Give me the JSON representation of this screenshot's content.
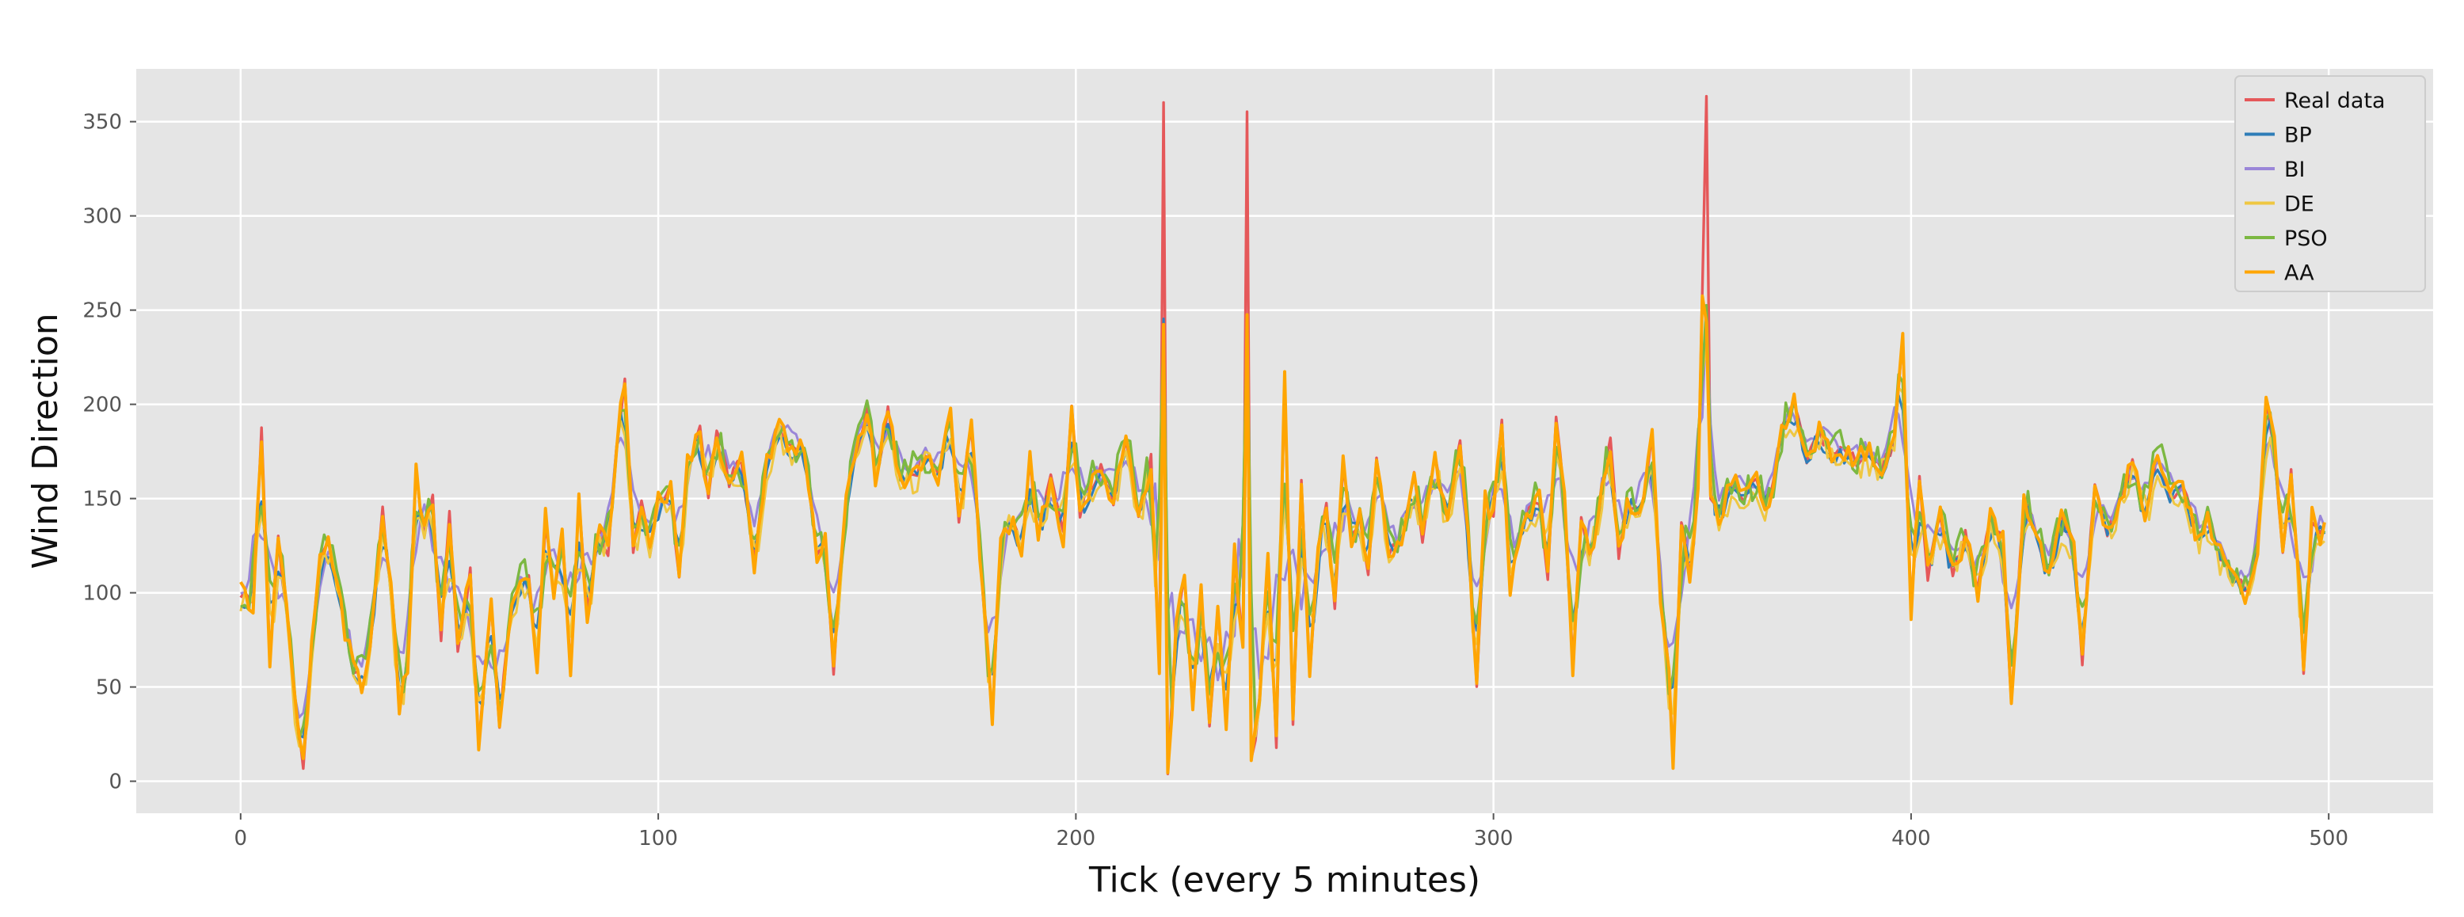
{
  "chart_data": {
    "type": "line",
    "title": "",
    "xlabel": "Tick (every 5 minutes)",
    "ylabel": "Wind Direction",
    "xlim": [
      -25,
      525
    ],
    "ylim": [
      -17,
      378
    ],
    "xticks": [
      0,
      100,
      200,
      300,
      400,
      500
    ],
    "yticks": [
      0,
      50,
      100,
      150,
      200,
      250,
      300,
      350
    ],
    "grid": true,
    "legend_position": "top-right",
    "n_points": 500,
    "x_step": 1,
    "keypoints": [
      [
        0,
        100
      ],
      [
        3,
        95
      ],
      [
        5,
        185
      ],
      [
        7,
        65
      ],
      [
        9,
        130
      ],
      [
        11,
        90
      ],
      [
        13,
        40
      ],
      [
        15,
        8
      ],
      [
        17,
        70
      ],
      [
        19,
        115
      ],
      [
        21,
        125
      ],
      [
        23,
        110
      ],
      [
        25,
        80
      ],
      [
        27,
        60
      ],
      [
        29,
        50
      ],
      [
        31,
        70
      ],
      [
        34,
        145
      ],
      [
        36,
        100
      ],
      [
        38,
        40
      ],
      [
        40,
        60
      ],
      [
        42,
        165
      ],
      [
        44,
        130
      ],
      [
        46,
        150
      ],
      [
        48,
        75
      ],
      [
        50,
        140
      ],
      [
        52,
        70
      ],
      [
        55,
        110
      ],
      [
        57,
        20
      ],
      [
        60,
        95
      ],
      [
        62,
        25
      ],
      [
        64,
        80
      ],
      [
        66,
        100
      ],
      [
        69,
        110
      ],
      [
        71,
        60
      ],
      [
        73,
        140
      ],
      [
        75,
        100
      ],
      [
        77,
        130
      ],
      [
        79,
        60
      ],
      [
        81,
        150
      ],
      [
        83,
        90
      ],
      [
        86,
        135
      ],
      [
        88,
        120
      ],
      [
        90,
        180
      ],
      [
        92,
        210
      ],
      [
        94,
        120
      ],
      [
        96,
        150
      ],
      [
        98,
        120
      ],
      [
        100,
        150
      ],
      [
        103,
        155
      ],
      [
        105,
        105
      ],
      [
        107,
        170
      ],
      [
        110,
        185
      ],
      [
        112,
        150
      ],
      [
        114,
        185
      ],
      [
        117,
        160
      ],
      [
        120,
        170
      ],
      [
        123,
        115
      ],
      [
        126,
        170
      ],
      [
        129,
        190
      ],
      [
        132,
        175
      ],
      [
        135,
        180
      ],
      [
        138,
        120
      ],
      [
        140,
        130
      ],
      [
        142,
        60
      ],
      [
        145,
        150
      ],
      [
        148,
        180
      ],
      [
        150,
        200
      ],
      [
        152,
        160
      ],
      [
        155,
        195
      ],
      [
        158,
        160
      ],
      [
        162,
        165
      ],
      [
        164,
        175
      ],
      [
        167,
        160
      ],
      [
        170,
        195
      ],
      [
        172,
        140
      ],
      [
        175,
        190
      ],
      [
        177,
        120
      ],
      [
        180,
        35
      ],
      [
        182,
        130
      ],
      [
        185,
        140
      ],
      [
        187,
        120
      ],
      [
        189,
        170
      ],
      [
        191,
        130
      ],
      [
        194,
        160
      ],
      [
        197,
        130
      ],
      [
        199,
        200
      ],
      [
        201,
        140
      ],
      [
        203,
        155
      ],
      [
        206,
        165
      ],
      [
        209,
        150
      ],
      [
        212,
        185
      ],
      [
        215,
        140
      ],
      [
        218,
        170
      ],
      [
        220,
        60
      ],
      [
        221,
        358
      ],
      [
        222,
        0
      ],
      [
        224,
        80
      ],
      [
        226,
        110
      ],
      [
        228,
        40
      ],
      [
        230,
        100
      ],
      [
        232,
        30
      ],
      [
        234,
        90
      ],
      [
        236,
        30
      ],
      [
        238,
        120
      ],
      [
        240,
        70
      ],
      [
        241,
        352
      ],
      [
        242,
        10
      ],
      [
        244,
        40
      ],
      [
        246,
        120
      ],
      [
        248,
        20
      ],
      [
        250,
        215
      ],
      [
        252,
        30
      ],
      [
        254,
        160
      ],
      [
        256,
        60
      ],
      [
        258,
        120
      ],
      [
        260,
        150
      ],
      [
        262,
        90
      ],
      [
        264,
        170
      ],
      [
        266,
        130
      ],
      [
        268,
        140
      ],
      [
        270,
        110
      ],
      [
        272,
        175
      ],
      [
        275,
        120
      ],
      [
        278,
        130
      ],
      [
        281,
        160
      ],
      [
        283,
        130
      ],
      [
        286,
        170
      ],
      [
        289,
        140
      ],
      [
        292,
        180
      ],
      [
        294,
        130
      ],
      [
        296,
        50
      ],
      [
        298,
        150
      ],
      [
        300,
        140
      ],
      [
        302,
        190
      ],
      [
        304,
        100
      ],
      [
        306,
        130
      ],
      [
        308,
        140
      ],
      [
        311,
        150
      ],
      [
        313,
        110
      ],
      [
        315,
        190
      ],
      [
        317,
        150
      ],
      [
        319,
        60
      ],
      [
        321,
        140
      ],
      [
        323,
        120
      ],
      [
        325,
        140
      ],
      [
        328,
        180
      ],
      [
        330,
        120
      ],
      [
        332,
        150
      ],
      [
        335,
        140
      ],
      [
        338,
        185
      ],
      [
        340,
        100
      ],
      [
        342,
        60
      ],
      [
        343,
        8
      ],
      [
        345,
        140
      ],
      [
        347,
        110
      ],
      [
        349,
        155
      ],
      [
        351,
        362
      ],
      [
        352,
        150
      ],
      [
        354,
        140
      ],
      [
        357,
        160
      ],
      [
        360,
        150
      ],
      [
        363,
        160
      ],
      [
        366,
        145
      ],
      [
        369,
        185
      ],
      [
        372,
        200
      ],
      [
        375,
        170
      ],
      [
        378,
        185
      ],
      [
        381,
        175
      ],
      [
        384,
        175
      ],
      [
        387,
        170
      ],
      [
        390,
        175
      ],
      [
        393,
        165
      ],
      [
        396,
        180
      ],
      [
        398,
        235
      ],
      [
        400,
        90
      ],
      [
        402,
        160
      ],
      [
        404,
        110
      ],
      [
        407,
        140
      ],
      [
        410,
        110
      ],
      [
        413,
        130
      ],
      [
        416,
        100
      ],
      [
        419,
        140
      ],
      [
        422,
        130
      ],
      [
        424,
        40
      ],
      [
        427,
        150
      ],
      [
        430,
        130
      ],
      [
        433,
        110
      ],
      [
        436,
        140
      ],
      [
        439,
        125
      ],
      [
        441,
        65
      ],
      [
        444,
        160
      ],
      [
        447,
        130
      ],
      [
        450,
        150
      ],
      [
        453,
        170
      ],
      [
        456,
        140
      ],
      [
        459,
        175
      ],
      [
        462,
        150
      ],
      [
        465,
        160
      ],
      [
        468,
        130
      ],
      [
        471,
        140
      ],
      [
        474,
        120
      ],
      [
        477,
        110
      ],
      [
        480,
        100
      ],
      [
        483,
        120
      ],
      [
        485,
        200
      ],
      [
        487,
        180
      ],
      [
        489,
        120
      ],
      [
        491,
        165
      ],
      [
        493,
        100
      ],
      [
        494,
        60
      ],
      [
        496,
        140
      ],
      [
        498,
        130
      ],
      [
        499,
        140
      ]
    ],
    "series": [
      {
        "name": "Real data",
        "color": "#E5585A",
        "width": 3.4,
        "smooth": 0,
        "jitter": 4,
        "offset": 0,
        "clip_spikes": false
      },
      {
        "name": "BP",
        "color": "#2E7DB8",
        "width": 3.0,
        "smooth": 1,
        "jitter": 5,
        "offset": -2,
        "clip_spikes": true
      },
      {
        "name": "BI",
        "color": "#9A86D8",
        "width": 3.0,
        "smooth": 2,
        "jitter": 5,
        "offset": 3,
        "clip_spikes": true
      },
      {
        "name": "DE",
        "color": "#EFC742",
        "width": 3.0,
        "smooth": 1,
        "jitter": 9,
        "offset": -4,
        "clip_spikes": true
      },
      {
        "name": "PSO",
        "color": "#7CB842",
        "width": 3.4,
        "smooth": 1,
        "jitter": 10,
        "offset": 2,
        "clip_spikes": true
      },
      {
        "name": "AA",
        "color": "#FFA502",
        "width": 4.0,
        "smooth": 0,
        "jitter": 6,
        "offset": 0,
        "clip_spikes": true
      }
    ]
  }
}
